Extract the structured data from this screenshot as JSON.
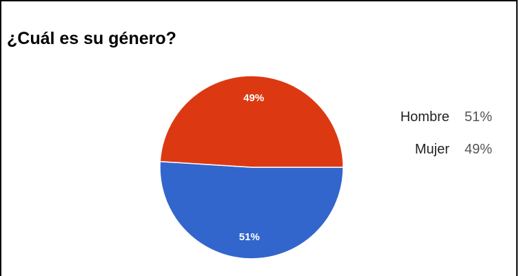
{
  "title": "¿Cuál es su género?",
  "chart_data": {
    "type": "pie",
    "title": "¿Cuál es su género?",
    "labels": [
      "Hombre",
      "Mujer"
    ],
    "values": [
      51,
      49
    ],
    "units": "%",
    "slice_labels": [
      "51%",
      "49%"
    ],
    "colors": [
      "#3366cc",
      "#dc3912"
    ],
    "legend_position": "right",
    "legend": [
      {
        "label": "Hombre",
        "value": "51%"
      },
      {
        "label": "Mujer",
        "value": "49%"
      }
    ]
  }
}
